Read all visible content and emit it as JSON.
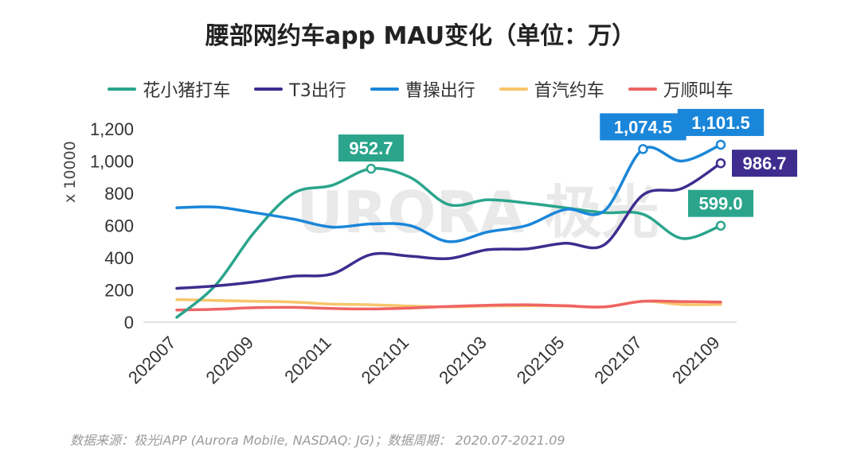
{
  "header": {
    "title": "腰部网约车app MAU变化（单位：万）"
  },
  "footer": {
    "source": "数据来源：极光iAPP (Aurora Mobile, NASDAQ: JG)；数据周期： 2020.07-2021.09"
  },
  "watermark": {
    "text": "URORA 极光"
  },
  "chart_data": {
    "type": "line",
    "ylabel": "x 10000",
    "ylim": [
      0,
      1200
    ],
    "yticks": [
      0,
      200,
      400,
      600,
      800,
      1000,
      1200
    ],
    "ytick_labels": [
      "0",
      "200",
      "400",
      "600",
      "800",
      "1,000",
      "1,200"
    ],
    "x": [
      "202007",
      "202008",
      "202009",
      "202010",
      "202011",
      "202012",
      "202101",
      "202102",
      "202103",
      "202104",
      "202105",
      "202106",
      "202107",
      "202108",
      "202109"
    ],
    "xtick_labels": [
      "202007",
      "202009",
      "202011",
      "202101",
      "202103",
      "202105",
      "202107",
      "202109"
    ],
    "legend_position": "top",
    "grid": false,
    "series": [
      {
        "name": "花小猪打车",
        "color": "#2aa58c",
        "values": [
          30,
          230,
          560,
          800,
          850,
          952.7,
          900,
          730,
          760,
          740,
          710,
          680,
          670,
          520,
          599.0
        ]
      },
      {
        "name": "T3出行",
        "color": "#3e2d8f",
        "values": [
          210,
          225,
          250,
          285,
          300,
          420,
          410,
          395,
          450,
          455,
          490,
          480,
          790,
          830,
          986.7
        ]
      },
      {
        "name": "曹操出行",
        "color": "#1a86d9",
        "values": [
          710,
          715,
          680,
          640,
          590,
          610,
          600,
          500,
          560,
          600,
          700,
          690,
          1074.5,
          1000,
          1101.5
        ]
      },
      {
        "name": "首汽约车",
        "color": "#f7c56b",
        "values": [
          140,
          135,
          130,
          125,
          112,
          108,
          100,
          95,
          100,
          102,
          100,
          95,
          130,
          110,
          110
        ]
      },
      {
        "name": "万顺叫车",
        "color": "#ef6464",
        "values": [
          75,
          80,
          90,
          92,
          85,
          82,
          88,
          98,
          105,
          108,
          102,
          95,
          130,
          128,
          125
        ]
      }
    ],
    "annotations": [
      {
        "series": "花小猪打车",
        "x": "202012",
        "value": 952.7,
        "label": "952.7"
      },
      {
        "series": "曹操出行",
        "x": "202107",
        "value": 1074.5,
        "label": "1,074.5"
      },
      {
        "series": "曹操出行",
        "x": "202109",
        "value": 1101.5,
        "label": "1,101.5"
      },
      {
        "series": "T3出行",
        "x": "202109",
        "value": 986.7,
        "label": "986.7"
      },
      {
        "series": "花小猪打车",
        "x": "202109",
        "value": 599.0,
        "label": "599.0"
      }
    ]
  }
}
